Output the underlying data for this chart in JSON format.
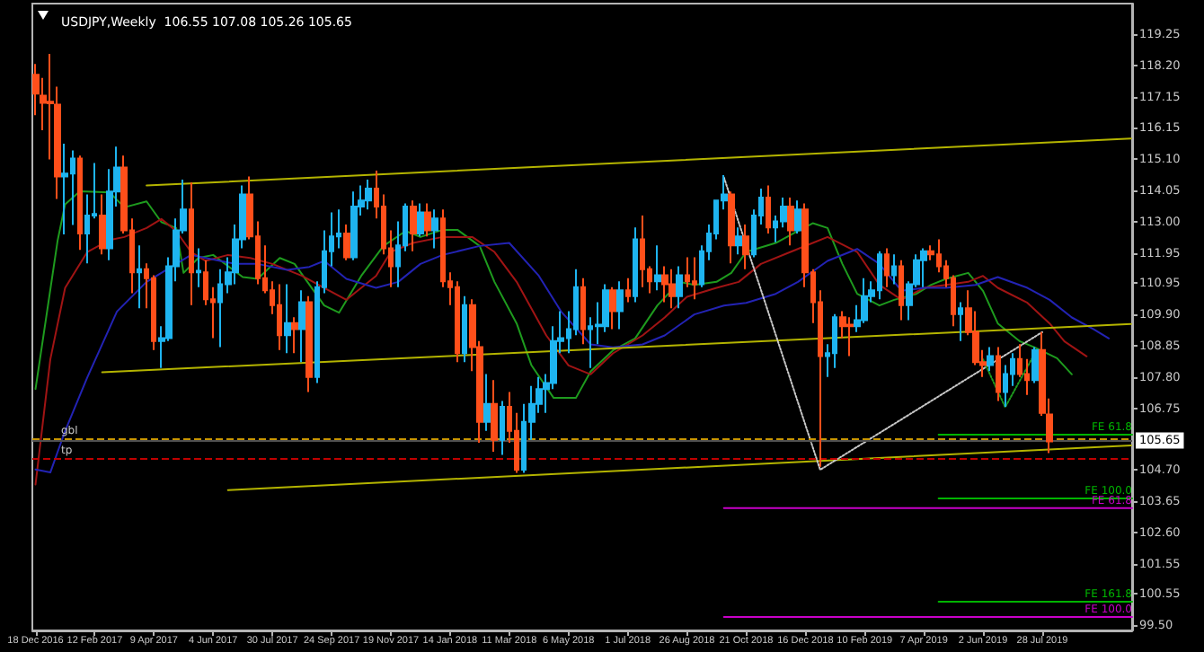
{
  "chart_data": {
    "type": "candlestick",
    "title": "USDJPY,Weekly  106.55 107.08 105.26 105.65",
    "x": [
      "2016-12-18",
      "2016-12-25",
      "2017-01-01",
      "2017-01-08",
      "2017-01-15",
      "2017-01-22",
      "2017-01-29",
      "2017-02-05",
      "2017-02-12",
      "2017-02-19",
      "2017-02-26",
      "2017-03-05",
      "2017-03-12",
      "2017-03-19",
      "2017-03-26",
      "2017-04-02",
      "2017-04-09",
      "2017-04-16",
      "2017-04-23",
      "2017-04-30",
      "2017-05-07",
      "2017-05-14",
      "2017-05-21",
      "2017-05-28",
      "2017-06-04",
      "2017-06-11",
      "2017-06-18",
      "2017-06-25",
      "2017-07-02",
      "2017-07-09",
      "2017-07-16",
      "2017-07-23",
      "2017-07-30",
      "2017-08-06",
      "2017-08-13",
      "2017-08-20",
      "2017-08-27",
      "2017-09-03",
      "2017-09-10",
      "2017-09-17",
      "2017-09-24",
      "2017-10-01",
      "2017-10-08",
      "2017-10-15",
      "2017-10-22",
      "2017-10-29",
      "2017-11-05",
      "2017-11-12",
      "2017-11-19",
      "2017-11-26",
      "2017-12-03",
      "2017-12-10",
      "2017-12-17",
      "2017-12-24",
      "2017-12-31",
      "2018-01-07",
      "2018-01-14",
      "2018-01-21",
      "2018-01-28",
      "2018-02-04",
      "2018-02-11",
      "2018-02-18",
      "2018-02-25",
      "2018-03-04",
      "2018-03-11",
      "2018-03-18",
      "2018-03-25",
      "2018-04-01",
      "2018-04-08",
      "2018-04-15",
      "2018-04-22",
      "2018-04-29",
      "2018-05-06",
      "2018-05-13",
      "2018-05-20",
      "2018-05-27",
      "2018-06-03",
      "2018-06-10",
      "2018-06-17",
      "2018-06-24",
      "2018-07-01",
      "2018-07-08",
      "2018-07-15",
      "2018-07-22",
      "2018-07-29",
      "2018-08-05",
      "2018-08-12",
      "2018-08-19",
      "2018-08-26",
      "2018-09-02",
      "2018-09-09",
      "2018-09-16",
      "2018-09-23",
      "2018-09-30",
      "2018-10-07",
      "2018-10-14",
      "2018-10-21",
      "2018-10-28",
      "2018-11-04",
      "2018-11-11",
      "2018-11-18",
      "2018-11-25",
      "2018-12-02",
      "2018-12-09",
      "2018-12-16",
      "2018-12-23",
      "2018-12-30",
      "2019-01-06",
      "2019-01-13",
      "2019-01-20",
      "2019-01-27",
      "2019-02-03",
      "2019-02-10",
      "2019-02-17",
      "2019-02-24",
      "2019-03-03",
      "2019-03-10",
      "2019-03-17",
      "2019-03-24",
      "2019-03-31",
      "2019-04-07",
      "2019-04-14",
      "2019-04-21",
      "2019-04-28",
      "2019-05-05",
      "2019-05-12",
      "2019-05-19",
      "2019-05-26",
      "2019-06-02",
      "2019-06-09",
      "2019-06-16",
      "2019-06-23",
      "2019-06-30",
      "2019-07-07",
      "2019-07-14",
      "2019-07-21",
      "2019-07-28",
      "2019-08-04"
    ],
    "ohlc": [
      [
        117.9,
        118.26,
        116.55,
        117.27
      ],
      [
        117.2,
        117.8,
        116.05,
        116.96
      ],
      [
        117.0,
        118.6,
        115.07,
        116.95
      ],
      [
        116.9,
        117.5,
        113.75,
        114.5
      ],
      [
        114.5,
        115.6,
        112.57,
        114.6
      ],
      [
        114.6,
        115.37,
        112.88,
        115.1
      ],
      [
        115.1,
        115.2,
        112.05,
        112.6
      ],
      [
        112.6,
        113.9,
        111.6,
        113.2
      ],
      [
        113.2,
        114.95,
        113.1,
        113.25
      ],
      [
        113.2,
        113.9,
        111.9,
        112.1
      ],
      [
        112.1,
        114.75,
        111.7,
        114.0
      ],
      [
        114.0,
        115.5,
        113.5,
        114.8
      ],
      [
        114.8,
        115.2,
        112.6,
        112.7
      ],
      [
        112.7,
        113.1,
        110.6,
        111.3
      ],
      [
        111.3,
        112.2,
        110.1,
        111.4
      ],
      [
        111.4,
        111.6,
        110.1,
        111.1
      ],
      [
        111.1,
        111.2,
        108.7,
        109.0
      ],
      [
        109.0,
        109.5,
        108.1,
        109.1
      ],
      [
        109.1,
        111.8,
        109.0,
        111.5
      ],
      [
        111.5,
        113.1,
        111.0,
        112.7
      ],
      [
        112.7,
        114.4,
        112.6,
        113.4
      ],
      [
        113.4,
        114.3,
        110.2,
        111.3
      ],
      [
        111.3,
        112.1,
        110.8,
        111.35
      ],
      [
        111.3,
        111.7,
        110.2,
        110.4
      ],
      [
        110.4,
        110.8,
        109.1,
        110.3
      ],
      [
        110.3,
        111.4,
        108.8,
        110.9
      ],
      [
        110.9,
        111.8,
        110.6,
        111.3
      ],
      [
        111.3,
        112.9,
        110.9,
        112.4
      ],
      [
        112.4,
        114.2,
        112.1,
        113.9
      ],
      [
        113.9,
        114.5,
        112.4,
        112.5
      ],
      [
        112.5,
        113.0,
        110.9,
        111.1
      ],
      [
        111.1,
        112.2,
        110.6,
        110.7
      ],
      [
        110.7,
        111.0,
        109.9,
        110.2
      ],
      [
        110.2,
        110.9,
        108.7,
        109.2
      ],
      [
        109.2,
        110.9,
        108.6,
        109.6
      ],
      [
        109.6,
        109.8,
        108.6,
        109.4
      ],
      [
        109.4,
        110.7,
        108.3,
        110.3
      ],
      [
        110.3,
        110.5,
        107.3,
        107.8
      ],
      [
        107.8,
        111.0,
        107.6,
        110.8
      ],
      [
        110.8,
        112.7,
        110.6,
        112.0
      ],
      [
        112.0,
        113.3,
        111.5,
        112.5
      ],
      [
        112.5,
        113.4,
        112.1,
        112.6
      ],
      [
        112.6,
        112.9,
        111.7,
        111.8
      ],
      [
        111.8,
        114.0,
        111.7,
        113.5
      ],
      [
        113.5,
        114.2,
        113.2,
        113.7
      ],
      [
        113.7,
        114.4,
        113.4,
        114.1
      ],
      [
        114.1,
        114.7,
        113.1,
        113.5
      ],
      [
        113.5,
        113.9,
        111.9,
        112.1
      ],
      [
        112.1,
        112.7,
        110.8,
        111.5
      ],
      [
        111.5,
        113.0,
        110.8,
        112.2
      ],
      [
        112.2,
        113.6,
        112.0,
        113.5
      ],
      [
        113.5,
        113.7,
        112.0,
        112.6
      ],
      [
        112.6,
        113.6,
        112.5,
        113.3
      ],
      [
        113.3,
        113.6,
        112.5,
        112.7
      ],
      [
        112.7,
        113.4,
        112.1,
        113.1
      ],
      [
        113.1,
        113.4,
        110.8,
        111.0
      ],
      [
        111.0,
        111.3,
        110.2,
        110.8
      ],
      [
        110.8,
        111.0,
        108.3,
        108.6
      ],
      [
        108.6,
        110.5,
        108.3,
        110.2
      ],
      [
        110.2,
        110.4,
        108.0,
        108.8
      ],
      [
        108.8,
        109.0,
        105.6,
        106.3
      ],
      [
        106.3,
        107.9,
        106.0,
        106.9
      ],
      [
        106.9,
        107.7,
        105.3,
        105.7
      ],
      [
        105.7,
        107.0,
        105.2,
        106.8
      ],
      [
        106.8,
        107.3,
        105.6,
        106.0
      ],
      [
        106.0,
        106.6,
        104.6,
        104.7
      ],
      [
        104.7,
        106.9,
        104.6,
        106.3
      ],
      [
        106.3,
        107.5,
        105.7,
        106.9
      ],
      [
        106.9,
        107.8,
        106.6,
        107.4
      ],
      [
        107.4,
        107.9,
        106.6,
        107.6
      ],
      [
        107.6,
        109.5,
        107.4,
        109.0
      ],
      [
        109.0,
        110.0,
        108.6,
        109.1
      ],
      [
        109.1,
        110.0,
        108.6,
        109.4
      ],
      [
        109.4,
        111.4,
        109.2,
        110.8
      ],
      [
        110.8,
        111.1,
        108.9,
        109.4
      ],
      [
        109.4,
        109.8,
        108.1,
        109.5
      ],
      [
        109.5,
        110.3,
        108.9,
        109.55
      ],
      [
        109.5,
        110.9,
        109.3,
        110.7
      ],
      [
        110.7,
        110.8,
        109.4,
        110.0
      ],
      [
        110.0,
        111.0,
        109.4,
        110.7
      ],
      [
        110.7,
        111.1,
        110.3,
        110.5
      ],
      [
        110.5,
        112.8,
        110.3,
        112.4
      ],
      [
        112.4,
        113.2,
        110.8,
        111.4
      ],
      [
        111.4,
        111.5,
        110.6,
        111.0
      ],
      [
        111.0,
        112.2,
        110.7,
        111.2
      ],
      [
        111.2,
        111.5,
        110.3,
        110.9
      ],
      [
        110.9,
        111.4,
        110.1,
        110.5
      ],
      [
        110.5,
        111.5,
        110.1,
        111.2
      ],
      [
        111.2,
        111.8,
        110.8,
        111.0
      ],
      [
        111.0,
        111.8,
        110.4,
        110.9
      ],
      [
        110.9,
        112.2,
        110.8,
        112.0
      ],
      [
        112.0,
        112.9,
        111.7,
        112.6
      ],
      [
        112.6,
        113.7,
        112.4,
        113.7
      ],
      [
        113.7,
        114.55,
        113.4,
        113.9
      ],
      [
        113.9,
        114.0,
        111.6,
        112.2
      ],
      [
        112.2,
        112.8,
        111.9,
        112.5
      ],
      [
        112.5,
        112.9,
        111.4,
        111.9
      ],
      [
        111.9,
        113.4,
        111.8,
        113.2
      ],
      [
        113.2,
        114.1,
        112.9,
        113.8
      ],
      [
        113.8,
        114.2,
        112.6,
        112.8
      ],
      [
        112.8,
        113.2,
        112.3,
        113.0
      ],
      [
        113.0,
        113.8,
        112.8,
        113.5
      ],
      [
        113.5,
        113.8,
        112.2,
        112.7
      ],
      [
        112.7,
        113.7,
        112.6,
        113.4
      ],
      [
        113.4,
        113.6,
        110.8,
        111.3
      ],
      [
        111.3,
        111.4,
        109.6,
        110.3
      ],
      [
        110.3,
        110.7,
        104.8,
        108.5
      ],
      [
        108.5,
        108.9,
        107.8,
        108.6
      ],
      [
        108.6,
        109.9,
        108.1,
        109.8
      ],
      [
        109.8,
        110.0,
        109.1,
        109.5
      ],
      [
        109.55,
        109.8,
        108.5,
        109.5
      ],
      [
        109.5,
        110.2,
        109.3,
        109.7
      ],
      [
        109.7,
        111.1,
        109.6,
        110.5
      ],
      [
        110.5,
        111.0,
        110.3,
        110.7
      ],
      [
        110.7,
        112.0,
        110.4,
        111.9
      ],
      [
        111.9,
        112.1,
        110.8,
        111.2
      ],
      [
        111.2,
        111.9,
        110.9,
        111.5
      ],
      [
        111.5,
        111.7,
        109.7,
        110.2
      ],
      [
        110.2,
        111.0,
        109.7,
        110.9
      ],
      [
        110.9,
        111.9,
        110.8,
        111.7
      ],
      [
        111.7,
        112.1,
        110.8,
        112.0
      ],
      [
        112.0,
        112.2,
        111.7,
        111.9
      ],
      [
        111.9,
        112.4,
        111.3,
        111.5
      ],
      [
        111.5,
        111.7,
        110.8,
        111.1
      ],
      [
        111.1,
        111.2,
        109.5,
        109.9
      ],
      [
        109.9,
        110.3,
        109.0,
        110.1
      ],
      [
        110.1,
        110.7,
        109.2,
        109.3
      ],
      [
        109.3,
        110.0,
        108.2,
        108.3
      ],
      [
        108.3,
        108.7,
        107.8,
        108.2
      ],
      [
        108.2,
        108.8,
        108.0,
        108.5
      ],
      [
        108.5,
        108.8,
        107.0,
        107.3
      ],
      [
        107.3,
        108.2,
        106.8,
        107.9
      ],
      [
        107.9,
        108.6,
        107.5,
        108.4
      ],
      [
        108.4,
        108.9,
        107.8,
        107.9
      ],
      [
        107.9,
        108.4,
        107.2,
        107.7
      ],
      [
        107.7,
        108.8,
        107.6,
        108.7
      ],
      [
        108.7,
        109.3,
        106.5,
        106.6
      ],
      [
        106.55,
        107.08,
        105.26,
        105.65
      ]
    ],
    "colors": [
      "#ff4f1a",
      "#ff4f1a",
      "#ff4f1a",
      "#ff4f1a",
      "#1eb4f0",
      "#1eb4f0",
      "#ff4f1a",
      "#1eb4f0",
      "#1eb4f0",
      "#ff4f1a",
      "#1eb4f0",
      "#1eb4f0",
      "#ff4f1a",
      "#ff4f1a",
      "#1eb4f0",
      "#ff4f1a",
      "#ff4f1a",
      "#1eb4f0",
      "#1eb4f0",
      "#1eb4f0",
      "#1eb4f0",
      "#ff4f1a",
      "#1eb4f0",
      "#ff4f1a",
      "#ff4f1a",
      "#1eb4f0",
      "#1eb4f0",
      "#1eb4f0",
      "#1eb4f0",
      "#ff4f1a",
      "#ff4f1a",
      "#ff4f1a",
      "#ff4f1a",
      "#ff4f1a",
      "#1eb4f0",
      "#ff4f1a",
      "#1eb4f0",
      "#ff4f1a",
      "#1eb4f0",
      "#1eb4f0",
      "#1eb4f0",
      "#1eb4f0",
      "#ff4f1a",
      "#1eb4f0",
      "#1eb4f0",
      "#1eb4f0",
      "#ff4f1a",
      "#ff4f1a",
      "#ff4f1a",
      "#1eb4f0",
      "#1eb4f0",
      "#ff4f1a",
      "#1eb4f0",
      "#ff4f1a",
      "#1eb4f0",
      "#ff4f1a",
      "#ff4f1a",
      "#ff4f1a",
      "#1eb4f0",
      "#ff4f1a",
      "#ff4f1a",
      "#1eb4f0",
      "#ff4f1a",
      "#1eb4f0",
      "#ff4f1a",
      "#ff4f1a",
      "#1eb4f0",
      "#1eb4f0",
      "#1eb4f0",
      "#1eb4f0",
      "#1eb4f0",
      "#1eb4f0",
      "#1eb4f0",
      "#1eb4f0",
      "#ff4f1a",
      "#1eb4f0",
      "#1eb4f0",
      "#1eb4f0",
      "#ff4f1a",
      "#1eb4f0",
      "#ff4f1a",
      "#1eb4f0",
      "#ff4f1a",
      "#ff4f1a",
      "#1eb4f0",
      "#ff4f1a",
      "#ff4f1a",
      "#1eb4f0",
      "#ff4f1a",
      "#ff4f1a",
      "#1eb4f0",
      "#1eb4f0",
      "#1eb4f0",
      "#1eb4f0",
      "#ff4f1a",
      "#1eb4f0",
      "#ff4f1a",
      "#1eb4f0",
      "#1eb4f0",
      "#ff4f1a",
      "#1eb4f0",
      "#1eb4f0",
      "#ff4f1a",
      "#1eb4f0",
      "#ff4f1a",
      "#ff4f1a",
      "#ff4f1a",
      "#1eb4f0",
      "#1eb4f0",
      "#ff4f1a",
      "#ff4f1a",
      "#1eb4f0",
      "#1eb4f0",
      "#1eb4f0",
      "#1eb4f0",
      "#ff4f1a",
      "#1eb4f0",
      "#ff4f1a",
      "#1eb4f0",
      "#1eb4f0",
      "#1eb4f0",
      "#ff4f1a",
      "#ff4f1a",
      "#ff4f1a",
      "#ff4f1a",
      "#1eb4f0",
      "#ff4f1a",
      "#ff4f1a",
      "#ff4f1a",
      "#1eb4f0",
      "#ff4f1a",
      "#1eb4f0",
      "#1eb4f0",
      "#ff4f1a",
      "#ff4f1a",
      "#1eb4f0",
      "#ff4f1a",
      "#ff4f1a"
    ],
    "series": [
      {
        "type": "line",
        "color": "#1e9b1e",
        "x": [
          "2016-12-18",
          "2017-01-08",
          "2017-01-15",
          "2017-01-29",
          "2017-02-26",
          "2017-03-12",
          "2017-04-02",
          "2017-04-16",
          "2017-04-30",
          "2017-05-07",
          "2017-05-21",
          "2017-06-04",
          "2017-07-02",
          "2017-07-16",
          "2017-08-06",
          "2017-08-20",
          "2017-09-17",
          "2017-10-01",
          "2017-10-22",
          "2017-11-12",
          "2017-12-03",
          "2017-12-17",
          "2018-01-07",
          "2018-01-21",
          "2018-02-11",
          "2018-02-25",
          "2018-03-18",
          "2018-04-01",
          "2018-04-22",
          "2018-05-13",
          "2018-05-27",
          "2018-06-17",
          "2018-07-08",
          "2018-07-29",
          "2018-08-19",
          "2018-09-02",
          "2018-09-23",
          "2018-10-07",
          "2018-10-21",
          "2018-11-18",
          "2018-12-09",
          "2018-12-23",
          "2019-01-06",
          "2019-01-20",
          "2019-02-03",
          "2019-02-24",
          "2019-03-10",
          "2019-03-31",
          "2019-04-14",
          "2019-04-28",
          "2019-05-19",
          "2019-06-02",
          "2019-06-16",
          "2019-07-07",
          "2019-07-21",
          "2019-08-11",
          "2019-08-25"
        ],
        "values": [
          107.4,
          112.38,
          113.57,
          114.01,
          113.97,
          113.47,
          113.67,
          112.98,
          112.78,
          111.28,
          111.78,
          111.88,
          111.14,
          111.08,
          111.78,
          111.58,
          110.19,
          109.95,
          111.18,
          112.18,
          112.68,
          112.48,
          112.72,
          112.72,
          112.18,
          110.98,
          109.59,
          108.19,
          107.1,
          107.1,
          107.99,
          108.69,
          109.09,
          110.19,
          110.98,
          110.88,
          110.98,
          111.28,
          111.98,
          112.28,
          112.68,
          112.94,
          112.78,
          111.58,
          110.58,
          110.19,
          110.38,
          110.58,
          110.88,
          111.08,
          111.28,
          110.68,
          109.59,
          108.99,
          108.79,
          108.43,
          107.89
        ]
      },
      {
        "type": "line",
        "color": "#a01414",
        "x": [
          "2016-12-18",
          "2017-01-01",
          "2017-01-15",
          "2017-02-05",
          "2017-02-26",
          "2017-03-12",
          "2017-04-02",
          "2017-04-16",
          "2017-04-30",
          "2017-05-14",
          "2017-05-28",
          "2017-06-18",
          "2017-07-09",
          "2017-07-30",
          "2017-08-27",
          "2017-09-17",
          "2017-10-08",
          "2017-11-05",
          "2017-11-19",
          "2017-12-10",
          "2018-01-07",
          "2018-02-04",
          "2018-02-25",
          "2018-03-18",
          "2018-04-15",
          "2018-05-06",
          "2018-05-27",
          "2018-06-17",
          "2018-07-15",
          "2018-08-05",
          "2018-08-26",
          "2018-09-23",
          "2018-10-14",
          "2018-11-04",
          "2018-12-02",
          "2018-12-23",
          "2019-01-06",
          "2019-02-03",
          "2019-02-24",
          "2019-03-17",
          "2019-04-07",
          "2019-04-28",
          "2019-05-19",
          "2019-06-02",
          "2019-06-16",
          "2019-07-14",
          "2019-08-04",
          "2019-08-18",
          "2019-09-08"
        ],
        "values": [
          104.21,
          108.39,
          110.78,
          111.98,
          112.38,
          112.48,
          112.78,
          113.08,
          112.68,
          111.98,
          111.68,
          111.88,
          111.78,
          111.58,
          111.18,
          110.78,
          110.38,
          111.18,
          111.98,
          112.28,
          112.48,
          112.48,
          111.98,
          110.98,
          109.19,
          108.19,
          107.89,
          108.59,
          109.19,
          109.79,
          110.48,
          110.78,
          110.98,
          111.58,
          111.98,
          112.28,
          112.48,
          111.98,
          110.88,
          110.38,
          110.78,
          110.88,
          110.98,
          111.18,
          110.78,
          110.28,
          109.59,
          108.99,
          108.49
        ]
      },
      {
        "type": "line",
        "color": "#2323b4",
        "x": [
          "2016-12-18",
          "2017-01-01",
          "2017-01-15",
          "2017-02-05",
          "2017-03-05",
          "2017-04-02",
          "2017-04-30",
          "2017-05-14",
          "2017-05-28",
          "2017-06-25",
          "2017-07-16",
          "2017-08-13",
          "2017-09-03",
          "2017-09-17",
          "2017-10-08",
          "2017-11-05",
          "2017-11-26",
          "2017-12-17",
          "2018-01-07",
          "2018-02-11",
          "2018-03-11",
          "2018-04-08",
          "2018-04-29",
          "2018-05-27",
          "2018-06-17",
          "2018-07-15",
          "2018-08-05",
          "2018-09-02",
          "2018-09-30",
          "2018-10-21",
          "2018-11-18",
          "2018-12-09",
          "2019-01-06",
          "2019-02-03",
          "2019-02-24",
          "2019-03-17",
          "2019-04-07",
          "2019-04-28",
          "2019-05-26",
          "2019-06-16",
          "2019-07-14",
          "2019-08-04",
          "2019-08-25",
          "2019-09-15",
          "2019-09-29"
        ],
        "values": [
          104.71,
          104.61,
          106.0,
          107.79,
          109.99,
          110.98,
          111.58,
          111.88,
          111.78,
          111.58,
          111.58,
          111.38,
          111.48,
          111.68,
          111.08,
          110.78,
          110.98,
          111.58,
          111.88,
          112.18,
          112.28,
          111.18,
          109.99,
          108.89,
          108.79,
          108.89,
          109.19,
          109.89,
          110.19,
          110.28,
          110.58,
          110.98,
          111.68,
          112.08,
          111.58,
          110.68,
          110.78,
          110.78,
          110.88,
          111.14,
          110.78,
          110.38,
          109.79,
          109.39,
          109.09
        ]
      },
      {
        "type": "line",
        "color": "#b4b400",
        "x": [
          "2017-04-02",
          "2019-10-20"
        ],
        "values": [
          114.2,
          115.77
        ]
      },
      {
        "type": "line",
        "color": "#b4b400",
        "x": [
          "2017-02-19",
          "2019-10-20"
        ],
        "values": [
          107.96,
          109.57
        ]
      },
      {
        "type": "line",
        "color": "#b4b400",
        "x": [
          "2017-06-18",
          "2019-10-20"
        ],
        "values": [
          104.02,
          105.51
        ]
      },
      {
        "type": "line",
        "color": "#c8c8c8",
        "line_style": "dotted",
        "x": [
          "2018-09-30",
          "2018-12-30",
          "2019-07-28"
        ],
        "values": [
          114.47,
          104.7,
          109.3
        ]
      },
      {
        "type": "line",
        "color": "#1e9b1e",
        "line_style": "dotted",
        "x": [
          "2019-06-02",
          "2019-06-23",
          "2019-07-21"
        ],
        "values": [
          108.39,
          106.79,
          108.59
        ]
      },
      {
        "type": "line",
        "name": "FE 61.8",
        "color": "#00b400",
        "x": [
          "2019-04-21",
          "2019-10-21"
        ],
        "values": [
          105.87,
          105.87
        ]
      },
      {
        "type": "line",
        "name": "FE 100.0",
        "color": "#00b400",
        "x": [
          "2019-04-21",
          "2019-10-21"
        ],
        "values": [
          103.74,
          103.74
        ]
      },
      {
        "type": "line",
        "name": "FE 161.8",
        "color": "#00b400",
        "x": [
          "2019-04-21",
          "2019-10-21"
        ],
        "values": [
          100.29,
          100.29
        ]
      },
      {
        "type": "line",
        "name": "FE 61.8",
        "color": "#c800c8",
        "x": [
          "2018-09-30",
          "2019-10-21"
        ],
        "values": [
          103.42,
          103.42
        ]
      },
      {
        "type": "line",
        "name": "FE 100.0",
        "color": "#c800c8",
        "x": [
          "2018-09-30",
          "2019-10-21"
        ],
        "values": [
          99.78,
          99.78
        ]
      }
    ],
    "ref_lines": [
      {
        "axis": "y",
        "value": 105.75,
        "label": "gbl",
        "color": "#c89600",
        "line_style": "dashed"
      },
      {
        "axis": "y",
        "value": 105.65,
        "label": null,
        "color": "#505050",
        "line_style": "solid"
      },
      {
        "axis": "y",
        "value": 105.09,
        "label": "tp",
        "color": "#c00000",
        "line_style": "dashed"
      }
    ],
    "annotations": [
      {
        "text": "105.65",
        "y": 105.65
      }
    ],
    "xlim": [
      "2016-12-15",
      "2019-10-21"
    ],
    "xticks": [
      {
        "value": "2016-12-18",
        "label": "18 Dec 2016"
      },
      {
        "value": "2017-02-12",
        "label": "12 Feb 2017"
      },
      {
        "value": "2017-04-09",
        "label": "9 Apr 2017"
      },
      {
        "value": "2017-06-04",
        "label": "4 Jun 2017"
      },
      {
        "value": "2017-07-30",
        "label": "30 Jul 2017"
      },
      {
        "value": "2017-09-24",
        "label": "24 Sep 2017"
      },
      {
        "value": "2017-11-19",
        "label": "19 Nov 2017"
      },
      {
        "value": "2018-01-14",
        "label": "14 Jan 2018"
      },
      {
        "value": "2018-03-11",
        "label": "11 Mar 2018"
      },
      {
        "value": "2018-05-06",
        "label": "6 May 2018"
      },
      {
        "value": "2018-07-01",
        "label": "1 Jul 2018"
      },
      {
        "value": "2018-08-26",
        "label": "26 Aug 2018"
      },
      {
        "value": "2018-10-21",
        "label": "21 Oct 2018"
      },
      {
        "value": "2018-12-16",
        "label": "16 Dec 2018"
      },
      {
        "value": "2019-02-10",
        "label": "10 Feb 2019"
      },
      {
        "value": "2019-04-07",
        "label": "7 Apr 2019"
      },
      {
        "value": "2019-06-02",
        "label": "2 Jun 2019"
      },
      {
        "value": "2019-07-28",
        "label": "28 Jul 2019"
      }
    ],
    "ylim": [
      99.33,
      120.28
    ],
    "yticks": [
      {
        "value": 99.5,
        "label": "99.50"
      },
      {
        "value": 100.55,
        "label": "100.55"
      },
      {
        "value": 101.55,
        "label": "101.55"
      },
      {
        "value": 102.6,
        "label": "102.60"
      },
      {
        "value": 103.65,
        "label": "103.65"
      },
      {
        "value": 104.7,
        "label": "104.70"
      },
      {
        "value": 106.75,
        "label": "106.75"
      },
      {
        "value": 107.8,
        "label": "107.80"
      },
      {
        "value": 108.85,
        "label": "108.85"
      },
      {
        "value": 109.9,
        "label": "109.90"
      },
      {
        "value": 110.95,
        "label": "110.95"
      },
      {
        "value": 111.95,
        "label": "111.95"
      },
      {
        "value": 113.0,
        "label": "113.00"
      },
      {
        "value": 114.05,
        "label": "114.05"
      },
      {
        "value": 115.1,
        "label": "115.10"
      },
      {
        "value": 116.15,
        "label": "116.15"
      },
      {
        "value": 117.15,
        "label": "117.15"
      },
      {
        "value": 118.2,
        "label": "118.20"
      },
      {
        "value": 119.25,
        "label": "119.25"
      }
    ]
  }
}
